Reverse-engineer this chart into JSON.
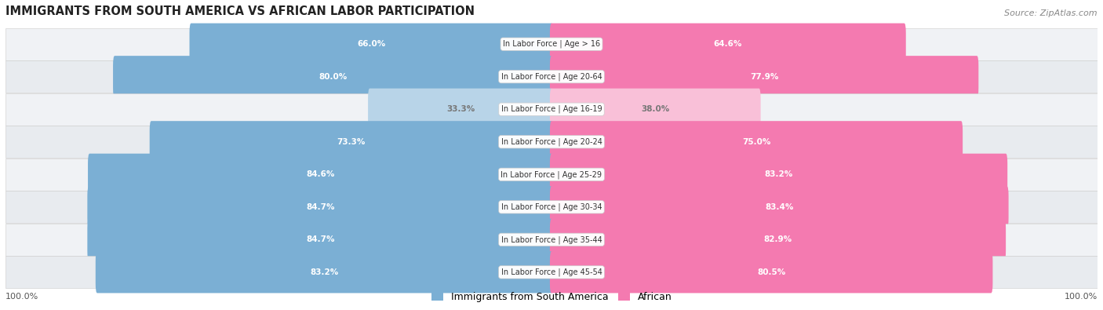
{
  "title": "IMMIGRANTS FROM SOUTH AMERICA VS AFRICAN LABOR PARTICIPATION",
  "source": "Source: ZipAtlas.com",
  "categories": [
    "In Labor Force | Age > 16",
    "In Labor Force | Age 20-64",
    "In Labor Force | Age 16-19",
    "In Labor Force | Age 20-24",
    "In Labor Force | Age 25-29",
    "In Labor Force | Age 30-34",
    "In Labor Force | Age 35-44",
    "In Labor Force | Age 45-54"
  ],
  "south_america_values": [
    66.0,
    80.0,
    33.3,
    73.3,
    84.6,
    84.7,
    84.7,
    83.2
  ],
  "african_values": [
    64.6,
    77.9,
    38.0,
    75.0,
    83.2,
    83.4,
    82.9,
    80.5
  ],
  "south_america_color": "#7bafd4",
  "south_america_light_color": "#b8d4e8",
  "african_color": "#f47ab0",
  "african_light_color": "#f9c0d8",
  "label_color_white": "#ffffff",
  "label_color_dark": "#777777",
  "max_value": 100.0,
  "legend_labels": [
    "Immigrants from South America",
    "African"
  ]
}
